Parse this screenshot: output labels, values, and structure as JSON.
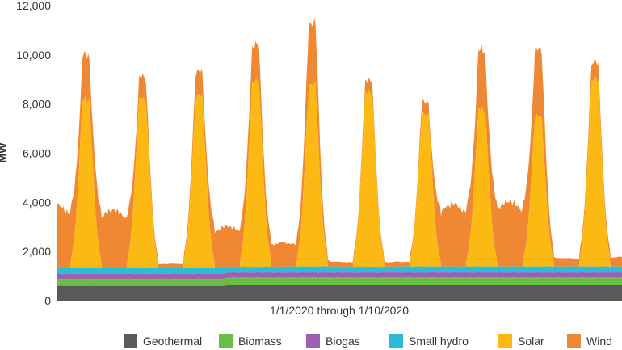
{
  "chart_data": {
    "type": "area",
    "stacked": true,
    "title": "",
    "xlabel": "1/1/2020 through 1/10/2020",
    "ylabel": "MW",
    "ylim": [
      0,
      12000
    ],
    "yticks": [
      0,
      2000,
      4000,
      6000,
      8000,
      10000,
      12000
    ],
    "ytick_labels": [
      "0",
      "2,000",
      "4,000",
      "6,000",
      "8,000",
      "10,000",
      "12,000"
    ],
    "grid": false,
    "legend_position": "bottom",
    "x_start": "1/1/2020",
    "x_end": "1/10/2020",
    "days": 10,
    "series": [
      {
        "name": "Geothermal",
        "color": "#58595b",
        "daily_values": [
          600,
          600,
          600,
          650,
          650,
          650,
          650,
          650,
          650,
          650
        ]
      },
      {
        "name": "Biomass",
        "color": "#6abd45",
        "daily_values": [
          290,
          290,
          290,
          290,
          290,
          290,
          290,
          290,
          290,
          290
        ]
      },
      {
        "name": "Biogas",
        "color": "#9e5fb2",
        "daily_values": [
          200,
          200,
          200,
          200,
          200,
          200,
          200,
          200,
          200,
          200
        ]
      },
      {
        "name": "Small hydro",
        "color": "#2bbcd8",
        "daily_values": [
          240,
          240,
          250,
          240,
          250,
          240,
          250,
          250,
          250,
          250
        ]
      },
      {
        "name": "Solar",
        "color": "#fdb913",
        "daily_peaks": [
          8200,
          8200,
          8300,
          8900,
          8800,
          8500,
          7600,
          7800,
          7500,
          9000
        ]
      },
      {
        "name": "Wind",
        "color": "#f08833",
        "daily_peaks": [
          10000,
          9100,
          9300,
          10400,
          11300,
          9000,
          8100,
          10200,
          10200,
          9700
        ],
        "overnight_levels": [
          2600,
          2400,
          200,
          1700,
          1000,
          200,
          200,
          2600,
          2700,
          350,
          400
        ]
      }
    ]
  }
}
